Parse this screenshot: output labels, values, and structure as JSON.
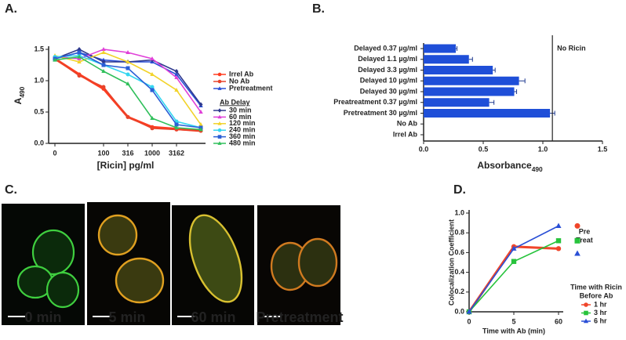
{
  "chart_data": [
    {
      "label": "A.",
      "type": "line",
      "categories": [
        "0",
        null,
        "100",
        "316",
        "1000",
        "3162",
        null
      ],
      "ylim": [
        0,
        1.5
      ],
      "yticks": [
        {
          "value": 0,
          "label": "0.0"
        },
        {
          "value": 0.5,
          "label": "0.5"
        },
        {
          "value": 1,
          "label": "1.0"
        },
        {
          "value": 1.5,
          "label": "1.5"
        }
      ],
      "xlabel": "[Ricin] pg/ml",
      "ylabel": {
        "text": "A",
        "sub": "490"
      },
      "legend_title": "Ab Delay",
      "series": [
        {
          "name": "Irrel Ab",
          "color": "#ff3b1f",
          "marker": "circle",
          "values": [
            1.35,
            1.1,
            0.87,
            0.42,
            0.26,
            0.23,
            0.2
          ]
        },
        {
          "name": "No Ab",
          "color": "#e8432a",
          "marker": "circle",
          "values": [
            1.35,
            1.08,
            0.9,
            0.42,
            0.24,
            0.22,
            0.2
          ]
        },
        {
          "name": "Pretreatment",
          "color": "#2a4fd6",
          "marker": "triangle",
          "values": [
            1.35,
            1.45,
            1.33,
            1.3,
            1.3,
            1.1,
            0.6
          ]
        },
        {
          "name": "30 min",
          "color": "#2f3a8f",
          "marker": "diamond",
          "values": [
            1.35,
            1.5,
            1.3,
            1.3,
            1.33,
            1.15,
            0.62
          ]
        },
        {
          "name": "60 min",
          "color": "#e040d8",
          "marker": "triangle",
          "values": [
            1.38,
            1.35,
            1.5,
            1.45,
            1.35,
            1.05,
            0.5
          ]
        },
        {
          "name": "120 min",
          "color": "#f2d32a",
          "marker": "triangle",
          "values": [
            1.4,
            1.3,
            1.45,
            1.3,
            1.1,
            0.85,
            0.3
          ]
        },
        {
          "name": "240 min",
          "color": "#35d6f0",
          "marker": "circle",
          "values": [
            1.38,
            1.4,
            1.25,
            1.1,
            0.9,
            0.35,
            0.25
          ]
        },
        {
          "name": "360 min",
          "color": "#2a5fd6",
          "marker": "square",
          "values": [
            1.35,
            1.45,
            1.25,
            1.2,
            0.85,
            0.3,
            0.25
          ]
        },
        {
          "name": "480 min",
          "color": "#2fbf5a",
          "marker": "triangle",
          "values": [
            1.33,
            1.38,
            1.15,
            0.95,
            0.4,
            0.25,
            0.22
          ]
        }
      ]
    },
    {
      "label": "B.",
      "type": "barh",
      "categories": [
        "Delayed 0.37 µg/ml",
        "Delayed 1.1 µg/ml",
        "Delayed 3.3 µg/ml",
        "Delayed 10 µg/ml",
        "Delayed 30 µg/ml",
        "Preatreatment 0.37 µg/ml",
        "Pretreatment 30 µg/ml",
        "No Ab",
        "Irrel Ab"
      ],
      "values": [
        0.27,
        0.38,
        0.58,
        0.8,
        0.76,
        0.55,
        1.06,
        0,
        0
      ],
      "errors": [
        0.01,
        0.03,
        0.02,
        0.05,
        0.02,
        0.04,
        0.04,
        0,
        0
      ],
      "color": "#1f4fd8",
      "xlim": [
        0,
        1.5
      ],
      "xticks": [
        {
          "value": 0,
          "label": "0.0"
        },
        {
          "value": 0.5,
          "label": "0.5"
        },
        {
          "value": 1,
          "label": "1.0"
        },
        {
          "value": 1.5,
          "label": "1.5"
        }
      ],
      "reference": {
        "value": 1.08,
        "label": "No Ricin"
      },
      "xlabel": {
        "text": "Absorbance",
        "sub": "490"
      }
    },
    {
      "label": "D.",
      "type": "line",
      "categories": [
        "0",
        "5",
        "60"
      ],
      "ylim": [
        0,
        1
      ],
      "yticks": [
        {
          "value": 0,
          "label": "0.0"
        },
        {
          "value": 0.2,
          "label": "0.2"
        },
        {
          "value": 0.4,
          "label": "0.4"
        },
        {
          "value": 0.6,
          "label": "0.6"
        },
        {
          "value": 0.8,
          "label": "0.8"
        },
        {
          "value": 1,
          "label": "1.0"
        }
      ],
      "xlabel": "Time with Ab (min)",
      "ylabel": "Colocalization Coefficient",
      "legend_title": [
        "Time with Ricin",
        "Before Ab"
      ],
      "pretreat_label": [
        "Pre",
        "Treat"
      ],
      "pretreat_values": [
        0.87,
        0.72,
        0.59
      ],
      "series": [
        {
          "name": "1 hr",
          "color": "#f0452a",
          "marker": "circle",
          "values": [
            0,
            0.66,
            0.64
          ]
        },
        {
          "name": "3 hr",
          "color": "#27c33c",
          "marker": "square",
          "values": [
            0,
            0.51,
            0.72
          ]
        },
        {
          "name": "6 hr",
          "color": "#2a4fd6",
          "marker": "triangle",
          "values": [
            0,
            0.64,
            0.87
          ]
        }
      ]
    }
  ],
  "images": {
    "label": "C.",
    "captions": [
      "0 min",
      "5 min",
      "60 min",
      "Pretreatment"
    ]
  }
}
